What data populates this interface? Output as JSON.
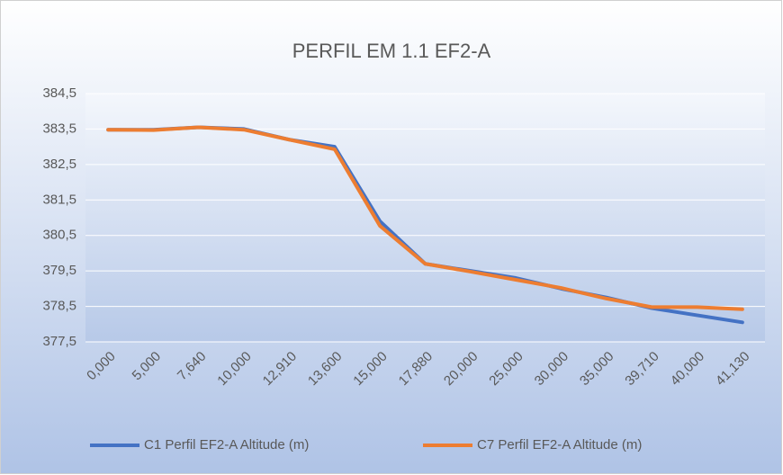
{
  "chart_data": {
    "type": "line",
    "title": "PERFIL EM 1.1 EF2-A",
    "categories": [
      "0,000",
      "5,000",
      "7,640",
      "10,000",
      "12,910",
      "13,600",
      "15,000",
      "17,880",
      "20,000",
      "25,000",
      "30,000",
      "35,000",
      "39,710",
      "40,000",
      "41,130"
    ],
    "series": [
      {
        "name": "C1 Perfil EF2-A Altitude (m)",
        "color": "#4472c4",
        "values": [
          383.48,
          383.48,
          383.55,
          383.5,
          383.2,
          383.0,
          380.9,
          379.7,
          379.5,
          379.3,
          379.0,
          378.75,
          378.45,
          378.25,
          378.05
        ]
      },
      {
        "name": "C7 Perfil EF2-A Altitude (m)",
        "color": "#ed7d31",
        "values": [
          383.48,
          383.47,
          383.55,
          383.48,
          383.2,
          382.93,
          380.77,
          379.7,
          379.48,
          379.25,
          379.02,
          378.72,
          378.48,
          378.48,
          378.42
        ]
      }
    ],
    "ylim": [
      377.5,
      384.5
    ],
    "yticks": [
      {
        "value": 377.5,
        "label": "377,5"
      },
      {
        "value": 378.5,
        "label": "378,5"
      },
      {
        "value": 379.5,
        "label": "379,5"
      },
      {
        "value": 380.5,
        "label": "380,5"
      },
      {
        "value": 381.5,
        "label": "381,5"
      },
      {
        "value": 382.5,
        "label": "382,5"
      },
      {
        "value": 383.5,
        "label": "383,5"
      },
      {
        "value": 384.5,
        "label": "384,5"
      }
    ],
    "grid": true,
    "legend": "bottom"
  }
}
